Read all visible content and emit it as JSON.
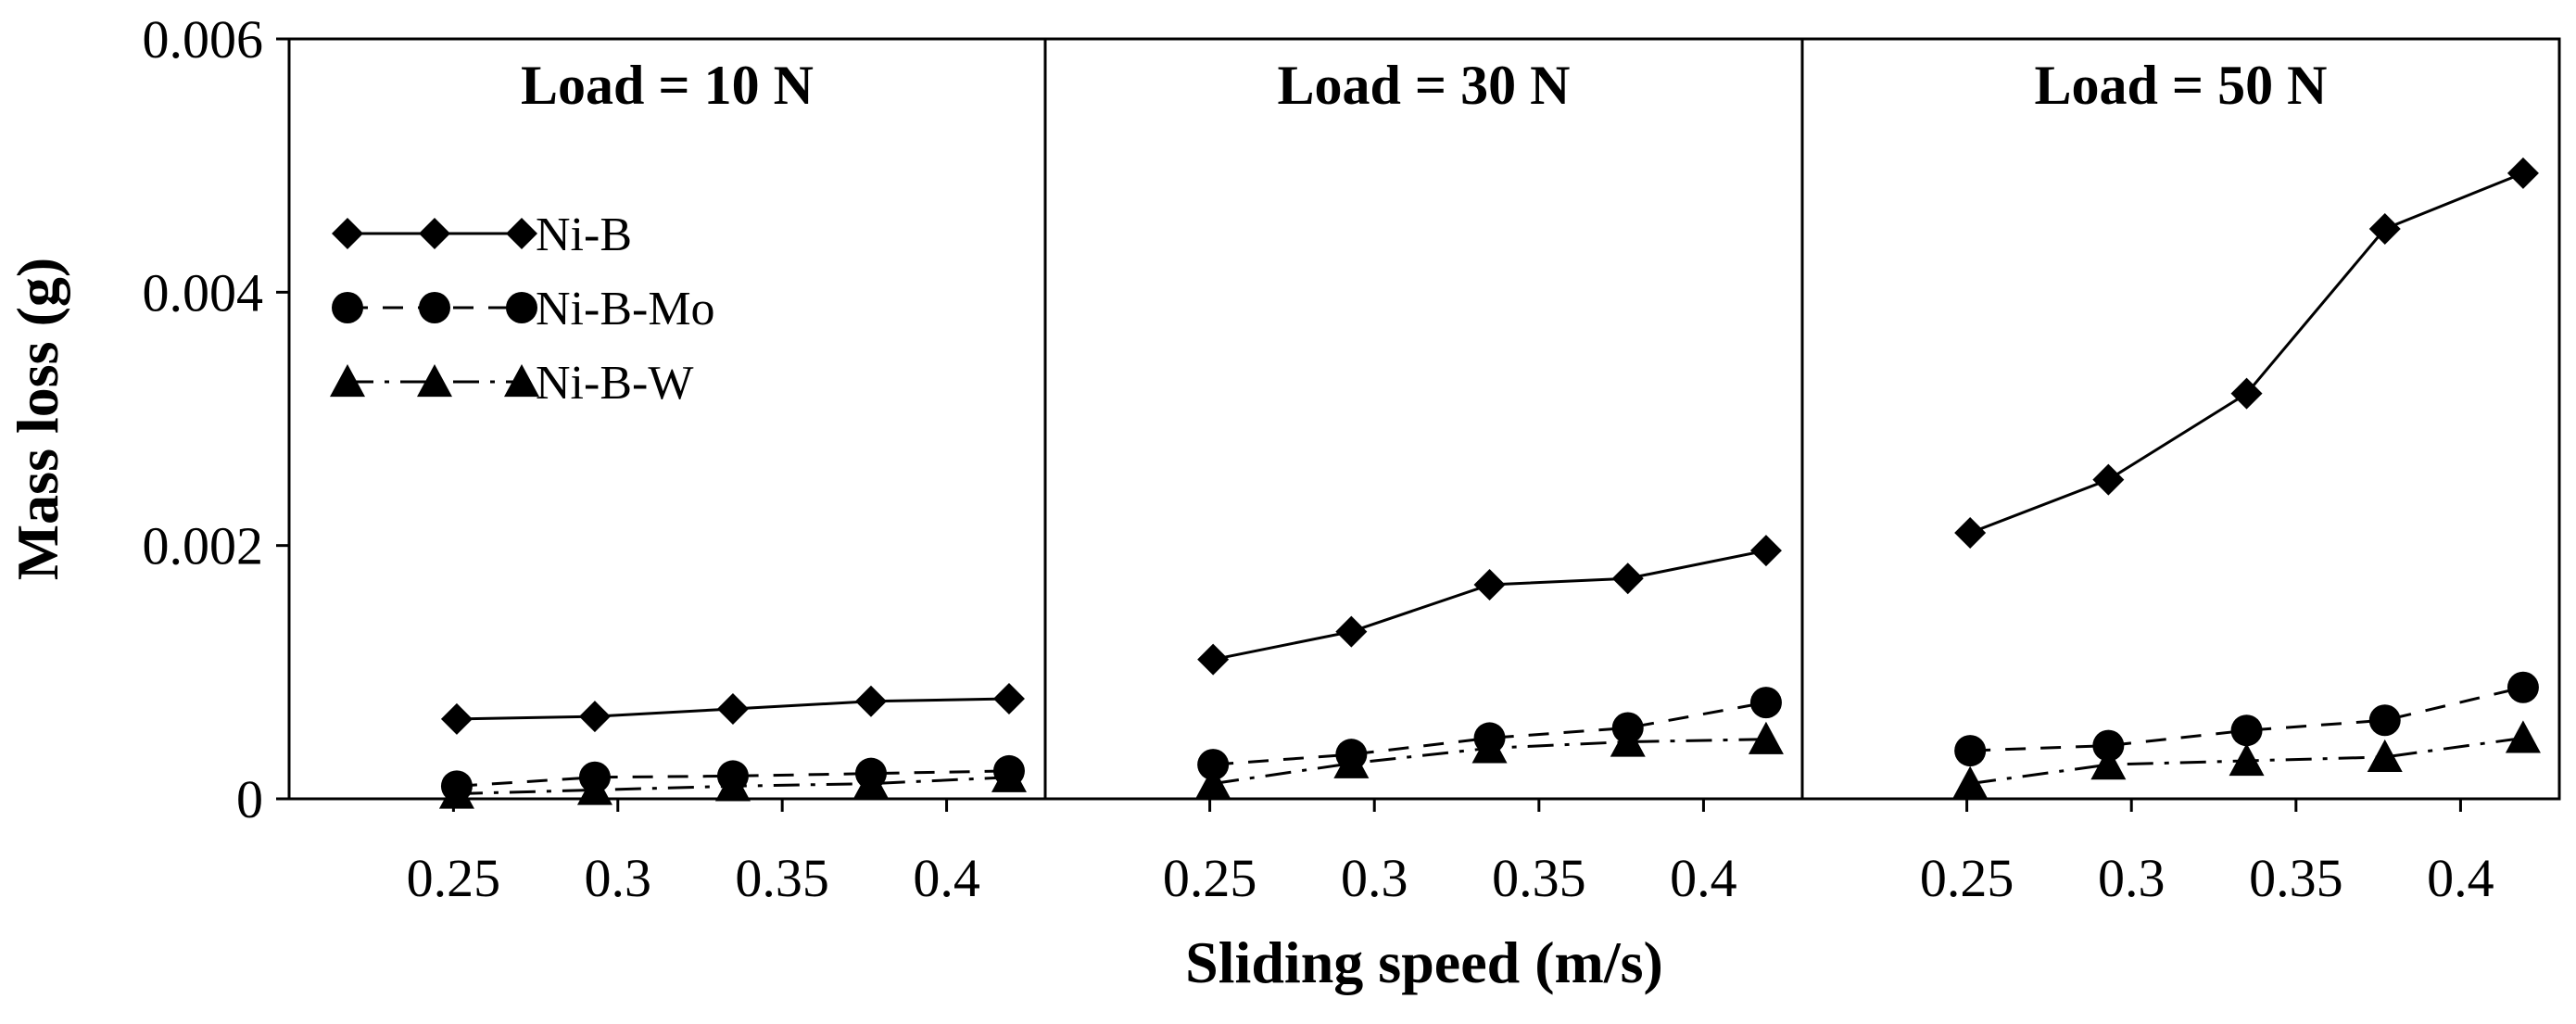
{
  "chart_data": {
    "type": "line",
    "xlabel": "Sliding speed (m/s)",
    "ylabel": "Mass loss (g)",
    "ylim": [
      0,
      0.006
    ],
    "yticks": [
      "0",
      "0.002",
      "0.004",
      "0.006"
    ],
    "xlim": [
      0.2,
      0.43
    ],
    "xticks": [
      "0.25",
      "0.3",
      "0.35",
      "0.4"
    ],
    "x": [
      0.251,
      0.293,
      0.335,
      0.377,
      0.419
    ],
    "legend": {
      "position": "top-left of first panel",
      "entries": [
        "Ni-B",
        "Ni-B-Mo",
        "Ni-B-W"
      ]
    },
    "panels": [
      {
        "title": "Load = 10 N",
        "series": [
          {
            "name": "Ni-B",
            "marker": "diamond",
            "line": "solid",
            "values": [
              0.00063,
              0.00065,
              0.00071,
              0.00077,
              0.00079
            ]
          },
          {
            "name": "Ni-B-Mo",
            "marker": "circle",
            "line": "dashed",
            "values": [
              0.0001,
              0.00017,
              0.00018,
              0.0002,
              0.00022
            ]
          },
          {
            "name": "Ni-B-W",
            "marker": "triangle",
            "line": "dash-dot",
            "values": [
              4e-05,
              7e-05,
              0.0001,
              0.00012,
              0.00017
            ]
          }
        ]
      },
      {
        "title": "Load = 30 N",
        "series": [
          {
            "name": "Ni-B",
            "marker": "diamond",
            "line": "solid",
            "values": [
              0.0011,
              0.00132,
              0.00169,
              0.00174,
              0.00196
            ]
          },
          {
            "name": "Ni-B-Mo",
            "marker": "circle",
            "line": "dashed",
            "values": [
              0.00027,
              0.00035,
              0.00048,
              0.00056,
              0.00076
            ]
          },
          {
            "name": "Ni-B-W",
            "marker": "triangle",
            "line": "dash-dot",
            "values": [
              0.00012,
              0.00028,
              0.0004,
              0.00045,
              0.00047
            ]
          }
        ]
      },
      {
        "title": "Load = 50 N",
        "series": [
          {
            "name": "Ni-B",
            "marker": "diamond",
            "line": "solid",
            "values": [
              0.0021,
              0.00252,
              0.0032,
              0.0045,
              0.00494
            ]
          },
          {
            "name": "Ni-B-Mo",
            "marker": "circle",
            "line": "dashed",
            "values": [
              0.00038,
              0.00042,
              0.00054,
              0.00062,
              0.00088
            ]
          },
          {
            "name": "Ni-B-W",
            "marker": "triangle",
            "line": "dash-dot",
            "values": [
              0.00012,
              0.00027,
              0.0003,
              0.00033,
              0.00048
            ]
          }
        ]
      }
    ]
  }
}
